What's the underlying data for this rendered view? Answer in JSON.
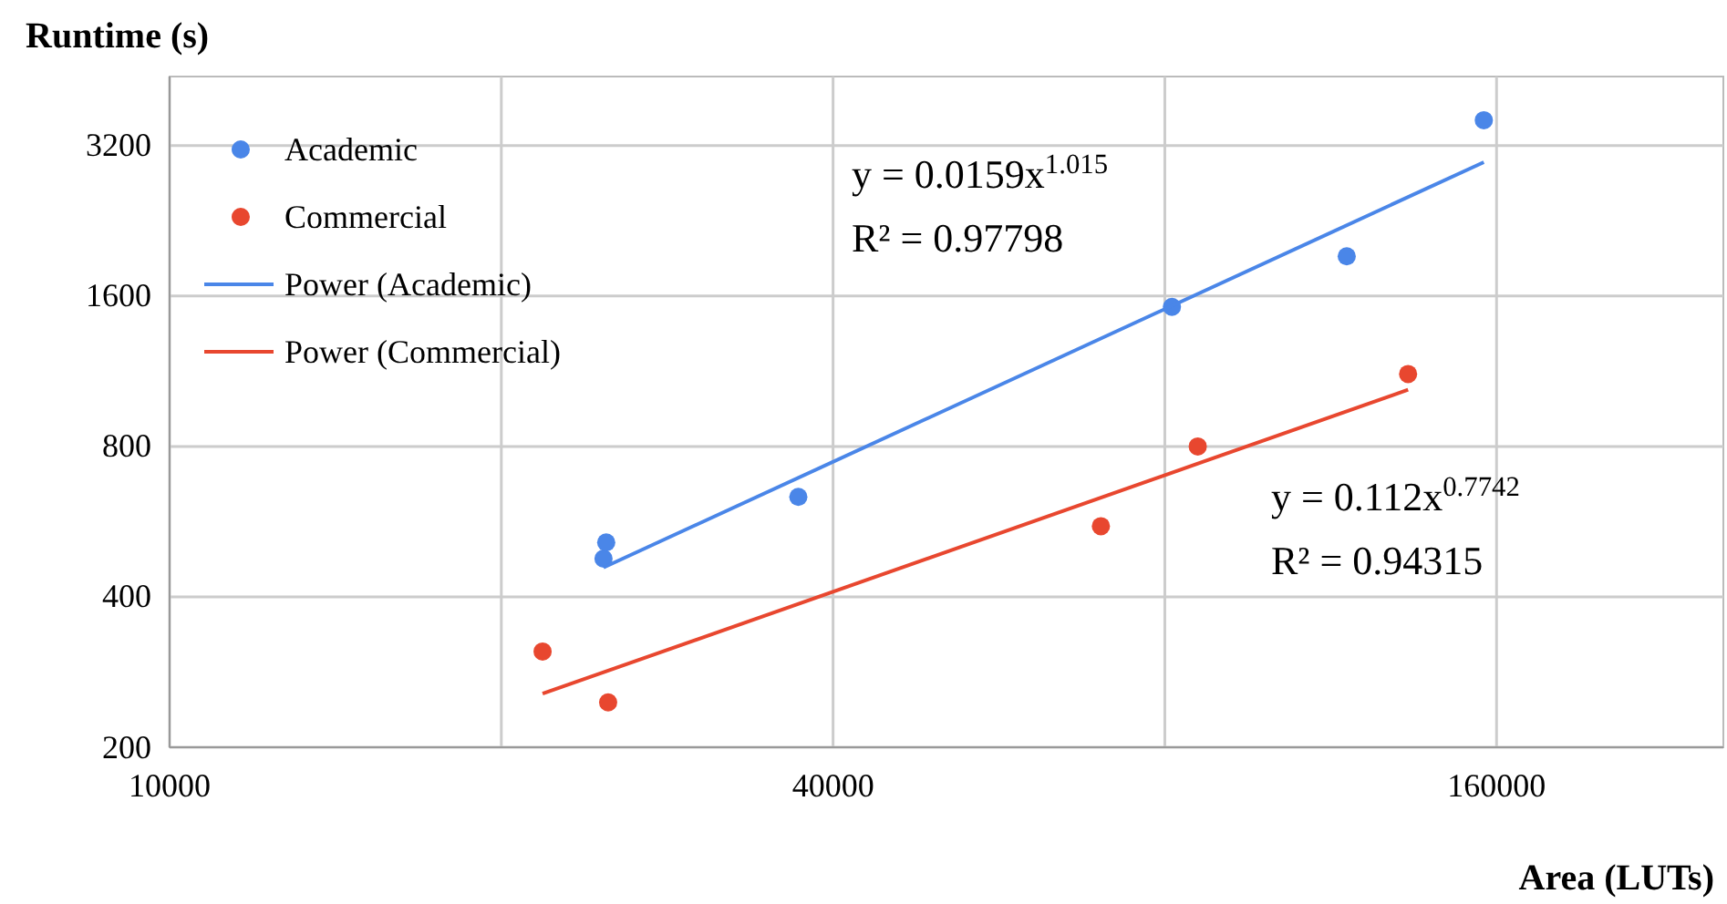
{
  "chart_data": {
    "type": "scatter",
    "xlabel": "Area (LUTs)",
    "ylabel": "Runtime (s)",
    "log": "xy",
    "grid": true,
    "legend": "top left",
    "marker": "circle",
    "xlim": [
      10000,
      257000
    ],
    "xticks": [
      10000,
      {
        "value": 20000,
        "label": null
      },
      40000,
      {
        "value": 80000,
        "label": null
      },
      160000
    ],
    "ylim": [
      200,
      4400
    ],
    "yticks": [
      200,
      400,
      800,
      1600,
      3200
    ],
    "series": [
      {
        "name": "Academic",
        "color": "#4a86e8",
        "x": [
          24760,
          24900,
          37200,
          81200,
          117000,
          155800
        ],
        "values": [
          477,
          514,
          634,
          1522,
          1922,
          3598
        ]
      },
      {
        "name": "Commercial",
        "color": "#e8472f",
        "x": [
          21800,
          25000,
          70000,
          85700,
          133000
        ],
        "values": [
          311,
          246,
          554,
          800,
          1117
        ]
      },
      {
        "name": "Power (Academic)",
        "type": "line",
        "marker": "none",
        "color": "#4a86e8",
        "x": [
          24760,
          155800
        ],
        "values": [
          458,
          2965
        ]
      },
      {
        "name": "Power (Commercial)",
        "type": "line",
        "marker": "none",
        "color": "#e8472f",
        "x": [
          21800,
          133000
        ],
        "values": [
          256,
          1039
        ]
      }
    ],
    "annotations": [
      "y = 0.0159x$^{1.015}$",
      "R² = 0.97798",
      "y = 0.112x$^{0.7742}$",
      "R² = 0.94315"
    ]
  }
}
